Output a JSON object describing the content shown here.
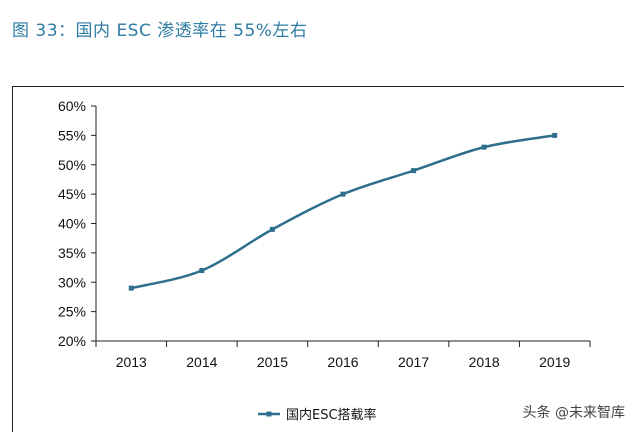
{
  "header": {
    "title": "图 33：国内 ESC 渗透率在 55%左右"
  },
  "watermark": "头条 @未来智库",
  "colors": {
    "line": "#2e6f8e",
    "title": "#2e7ca3",
    "axis": "#222222"
  },
  "chart_data": {
    "type": "line",
    "title": "",
    "xlabel": "",
    "ylabel": "",
    "categories": [
      "2013",
      "2014",
      "2015",
      "2016",
      "2017",
      "2018",
      "2019"
    ],
    "yticks": [
      "20%",
      "25%",
      "30%",
      "35%",
      "40%",
      "45%",
      "50%",
      "55%",
      "60%"
    ],
    "ylim": [
      0.2,
      0.6
    ],
    "grid": false,
    "legend": "bottom",
    "series": [
      {
        "name": "国内ESC搭载率",
        "values": [
          0.29,
          0.32,
          0.39,
          0.45,
          0.49,
          0.53,
          0.55
        ]
      }
    ]
  }
}
